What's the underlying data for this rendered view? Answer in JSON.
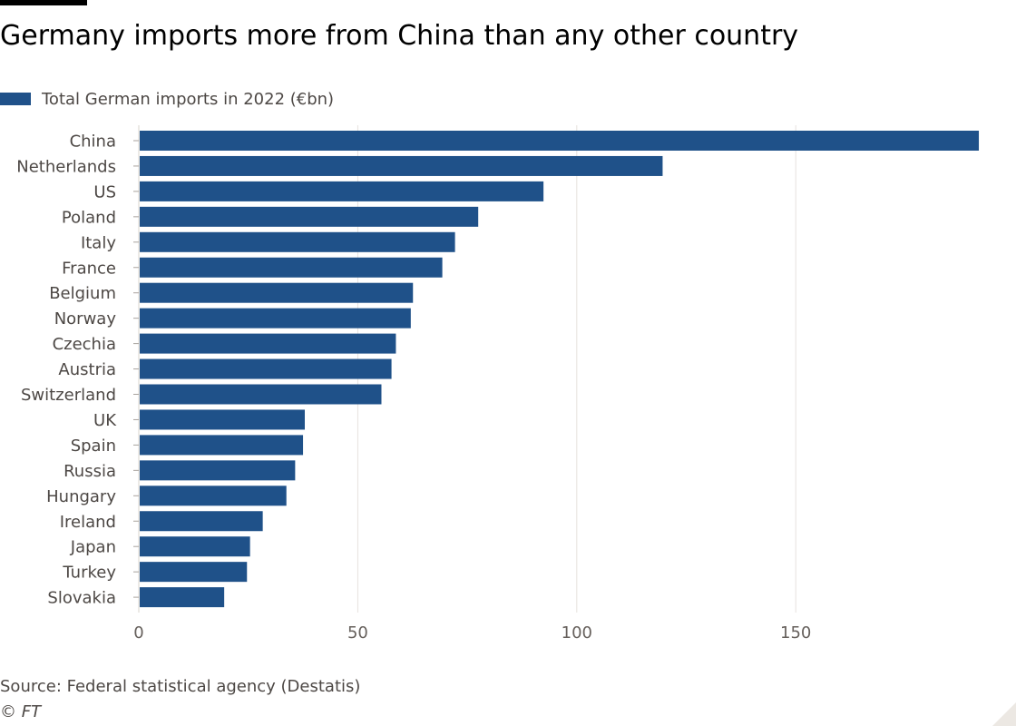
{
  "title": "Germany imports more from China than any other country",
  "legend": {
    "label": "Total German imports in 2022 (€bn)",
    "color": "#1f5189"
  },
  "source": "Source: Federal statistical agency (Destatis)",
  "credit": "© FT",
  "chart_data": {
    "type": "bar",
    "orientation": "horizontal",
    "title": "Germany imports more from China than any other country",
    "xlabel": "",
    "ylabel": "",
    "categories": [
      "China",
      "Netherlands",
      "US",
      "Poland",
      "Italy",
      "France",
      "Belgium",
      "Norway",
      "Czechia",
      "Austria",
      "Switzerland",
      "UK",
      "Spain",
      "Russia",
      "Hungary",
      "Ireland",
      "Japan",
      "Turkey",
      "Slovakia"
    ],
    "series": [
      {
        "name": "Total German imports in 2022 (€bn)",
        "color": "#1f5189",
        "values": [
          191.8,
          119.6,
          92.4,
          77.5,
          72.2,
          69.3,
          62.6,
          62.1,
          58.7,
          57.7,
          55.4,
          37.9,
          37.5,
          35.7,
          33.7,
          28.3,
          25.4,
          24.7,
          19.5
        ]
      }
    ],
    "xlim": [
      0,
      192
    ],
    "xticks": [
      0,
      50,
      100,
      150
    ],
    "grid": true
  }
}
